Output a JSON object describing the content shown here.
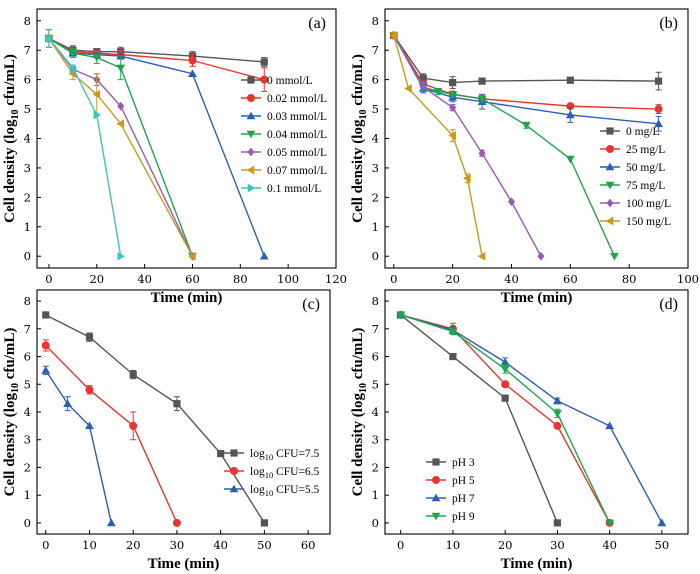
{
  "chart_data": [
    {
      "type": "line",
      "panel_label": "(a)",
      "xlabel": "Time (min)",
      "ylabel_main": "Cell density (log",
      "ylabel_sub": "10",
      "ylabel_tail": " cfu/mL)",
      "xlim": [
        -5,
        120
      ],
      "ylim": [
        -0.4,
        8.4
      ],
      "xticks": [
        0,
        20,
        40,
        60,
        80,
        100,
        120
      ],
      "yticks": [
        0,
        1,
        2,
        3,
        4,
        5,
        6,
        7,
        8
      ],
      "legend_position": "center-right",
      "series": [
        {
          "name": "0 mmol/L",
          "label_sub": "",
          "label_tail": "",
          "color": "#555555",
          "marker": "square",
          "x": [
            0,
            10,
            20,
            30,
            60,
            90
          ],
          "y": [
            7.4,
            7.0,
            6.95,
            6.95,
            6.8,
            6.6
          ],
          "err": [
            0.3,
            0.15,
            0.1,
            0.15,
            0.15,
            0.15
          ]
        },
        {
          "name": "0.02 mmol/L",
          "label_sub": "",
          "label_tail": "",
          "color": "#e8352e",
          "marker": "circle",
          "x": [
            0,
            10,
            20,
            30,
            60,
            90
          ],
          "y": [
            7.4,
            6.95,
            6.9,
            6.85,
            6.65,
            6.0
          ],
          "err": [
            0.3,
            0.1,
            0.1,
            0.15,
            0.2,
            0.4
          ]
        },
        {
          "name": "0.03 mmol/L",
          "label_sub": "",
          "label_tail": "",
          "color": "#2c5fb3",
          "marker": "triangle-up",
          "x": [
            0,
            10,
            20,
            30,
            60,
            90
          ],
          "y": [
            7.4,
            6.9,
            6.85,
            6.8,
            6.2,
            0.0
          ],
          "err": [
            0.3,
            0.1,
            0.1,
            0.1,
            0,
            0
          ]
        },
        {
          "name": "0.04 mmol/L",
          "label_sub": "",
          "label_tail": "",
          "color": "#1fa54a",
          "marker": "triangle-down",
          "x": [
            0,
            10,
            20,
            30,
            60
          ],
          "y": [
            7.4,
            6.9,
            6.75,
            6.4,
            0.0
          ],
          "err": [
            0.3,
            0.15,
            0.2,
            0.4,
            0
          ]
        },
        {
          "name": "0.05 mmol/L",
          "label_sub": "",
          "label_tail": "",
          "color": "#9b59b6",
          "marker": "diamond",
          "x": [
            0,
            10,
            20,
            30,
            60
          ],
          "y": [
            7.4,
            6.35,
            6.0,
            5.1,
            0.0
          ],
          "err": [
            0.3,
            0.1,
            0.2,
            0,
            0
          ]
        },
        {
          "name": "0.07 mmol/L",
          "label_sub": "",
          "label_tail": "",
          "color": "#c89b1e",
          "marker": "triangle-left",
          "x": [
            0,
            10,
            20,
            30,
            60
          ],
          "y": [
            7.4,
            6.2,
            5.5,
            4.5,
            0.0
          ],
          "err": [
            0.3,
            0.2,
            0.7,
            0,
            0
          ]
        },
        {
          "name": "0.1 mmol/L",
          "label_sub": "",
          "label_tail": "",
          "color": "#3cc6c0",
          "marker": "triangle-right",
          "x": [
            0,
            10,
            20,
            30
          ],
          "y": [
            7.4,
            6.4,
            4.8,
            0.0
          ],
          "err": [
            0.3,
            0.1,
            0,
            0
          ]
        }
      ]
    },
    {
      "type": "line",
      "panel_label": "(b)",
      "xlabel": "Time (min)",
      "ylabel_main": "Cell density (log",
      "ylabel_sub": "10",
      "ylabel_tail": " cfu/mL)",
      "xlim": [
        -3,
        100
      ],
      "ylim": [
        -0.4,
        8.4
      ],
      "xticks": [
        0,
        20,
        40,
        60,
        80,
        100
      ],
      "yticks": [
        0,
        1,
        2,
        3,
        4,
        5,
        6,
        7,
        8
      ],
      "legend_position": "center-right",
      "series": [
        {
          "name": "0 mg/L",
          "label_sub": "",
          "label_tail": "",
          "color": "#555555",
          "marker": "square",
          "x": [
            0,
            10,
            20,
            30,
            60,
            90
          ],
          "y": [
            7.5,
            6.05,
            5.9,
            5.95,
            5.98,
            5.95
          ],
          "err": [
            0.1,
            0.15,
            0.2,
            0.05,
            0.05,
            0.3
          ]
        },
        {
          "name": "25  mg/L",
          "label_sub": "",
          "label_tail": "",
          "color": "#e8352e",
          "marker": "circle",
          "x": [
            0,
            10,
            20,
            30,
            60,
            90
          ],
          "y": [
            7.5,
            5.85,
            5.5,
            5.35,
            5.1,
            5.0
          ],
          "err": [
            0.1,
            0.1,
            0.1,
            0.1,
            0.05,
            0.15
          ]
        },
        {
          "name": "50 mg/L",
          "label_sub": "",
          "label_tail": "",
          "color": "#2c5fb3",
          "marker": "triangle-up",
          "x": [
            0,
            10,
            20,
            30,
            60,
            90
          ],
          "y": [
            7.5,
            5.7,
            5.4,
            5.25,
            4.8,
            4.5
          ],
          "err": [
            0.1,
            0.15,
            0.15,
            0.25,
            0.25,
            0.25
          ]
        },
        {
          "name": "75 mg/L",
          "label_sub": "",
          "label_tail": "",
          "color": "#1fa54a",
          "marker": "triangle-down",
          "x": [
            0,
            10,
            15,
            20,
            30,
            45,
            60,
            75
          ],
          "y": [
            7.5,
            5.75,
            5.6,
            5.5,
            5.35,
            4.45,
            3.3,
            0.0
          ],
          "err": [
            0.1,
            0.1,
            0.1,
            0.1,
            0.1,
            0.1,
            0,
            0
          ]
        },
        {
          "name": "100 mg/L",
          "label_sub": "",
          "label_tail": "",
          "color": "#9b59b6",
          "marker": "diamond",
          "x": [
            0,
            10,
            20,
            30,
            40,
            50
          ],
          "y": [
            7.5,
            5.75,
            5.05,
            3.5,
            1.85,
            0.0
          ],
          "err": [
            0.1,
            0.15,
            0.1,
            0.1,
            0,
            0
          ]
        },
        {
          "name": "150 mg/L",
          "label_sub": "",
          "label_tail": "",
          "color": "#c89b1e",
          "marker": "triangle-left",
          "x": [
            0,
            5,
            20,
            25,
            30
          ],
          "y": [
            7.5,
            5.7,
            4.1,
            2.65,
            0.0
          ],
          "err": [
            0.1,
            0,
            0.2,
            0.15,
            0
          ]
        }
      ]
    },
    {
      "type": "line",
      "panel_label": "(c)",
      "xlabel": "Time (min)",
      "ylabel_main": "Cell density (log",
      "ylabel_sub": "10",
      "ylabel_tail": " cfu/mL)",
      "xlim": [
        -2,
        65
      ],
      "ylim": [
        -0.4,
        8.4
      ],
      "xticks": [
        0,
        10,
        20,
        30,
        40,
        50,
        60
      ],
      "yticks": [
        0,
        1,
        2,
        3,
        4,
        5,
        6,
        7,
        8
      ],
      "legend_position": "center-right",
      "series": [
        {
          "name": "log",
          "label_sub": "10",
          "label_tail": " CFU=7.5",
          "color": "#555555",
          "marker": "square",
          "x": [
            0,
            10,
            20,
            30,
            40,
            50
          ],
          "y": [
            7.5,
            6.7,
            5.35,
            4.3,
            2.5,
            0.0
          ],
          "err": [
            0,
            0.15,
            0.15,
            0.25,
            0,
            0
          ]
        },
        {
          "name": "log",
          "label_sub": "10",
          "label_tail": " CFU=6.5",
          "color": "#e8352e",
          "marker": "circle",
          "x": [
            0,
            10,
            20,
            30
          ],
          "y": [
            6.4,
            4.8,
            3.5,
            0.0
          ],
          "err": [
            0.2,
            0.15,
            0.5,
            0
          ]
        },
        {
          "name": "log",
          "label_sub": "10",
          "label_tail": " CFU=5.5",
          "color": "#2c5fb3",
          "marker": "triangle-up",
          "x": [
            0,
            5,
            10,
            15
          ],
          "y": [
            5.5,
            4.3,
            3.5,
            0.0
          ],
          "err": [
            0.15,
            0.25,
            0,
            0
          ]
        }
      ]
    },
    {
      "type": "line",
      "panel_label": "(d)",
      "xlabel": "Time (min)",
      "ylabel_main": "Cell density (log",
      "ylabel_sub": "10",
      "ylabel_tail": " cfu/mL)",
      "xlim": [
        -3,
        55
      ],
      "ylim": [
        -0.4,
        8.4
      ],
      "xticks": [
        0,
        10,
        20,
        30,
        40,
        50
      ],
      "yticks": [
        0,
        1,
        2,
        3,
        4,
        5,
        6,
        7,
        8
      ],
      "legend_position": "bottom-left",
      "series": [
        {
          "name": "pH 3",
          "label_sub": "",
          "label_tail": "",
          "color": "#555555",
          "marker": "square",
          "x": [
            0,
            10,
            20,
            30
          ],
          "y": [
            7.5,
            6.0,
            4.5,
            0.0
          ],
          "err": [
            0,
            0,
            0,
            0
          ]
        },
        {
          "name": "pH 5",
          "label_sub": "",
          "label_tail": "",
          "color": "#e8352e",
          "marker": "circle",
          "x": [
            0,
            10,
            20,
            30,
            40
          ],
          "y": [
            7.5,
            7.0,
            5.0,
            3.5,
            0.0
          ],
          "err": [
            0.1,
            0.2,
            0.1,
            0,
            0
          ]
        },
        {
          "name": "pH 7",
          "label_sub": "",
          "label_tail": "",
          "color": "#2c5fb3",
          "marker": "triangle-up",
          "x": [
            0,
            10,
            20,
            30,
            40,
            50
          ],
          "y": [
            7.5,
            6.95,
            5.8,
            4.4,
            3.5,
            0.0
          ],
          "err": [
            0.1,
            0.15,
            0.15,
            0.1,
            0,
            0
          ]
        },
        {
          "name": "pH 9",
          "label_sub": "",
          "label_tail": "",
          "color": "#1fa54a",
          "marker": "triangle-down",
          "x": [
            0,
            10,
            20,
            30,
            40
          ],
          "y": [
            7.5,
            6.9,
            5.55,
            3.95,
            0.0
          ],
          "err": [
            0.1,
            0.1,
            0.15,
            0.15,
            0
          ]
        }
      ]
    }
  ]
}
